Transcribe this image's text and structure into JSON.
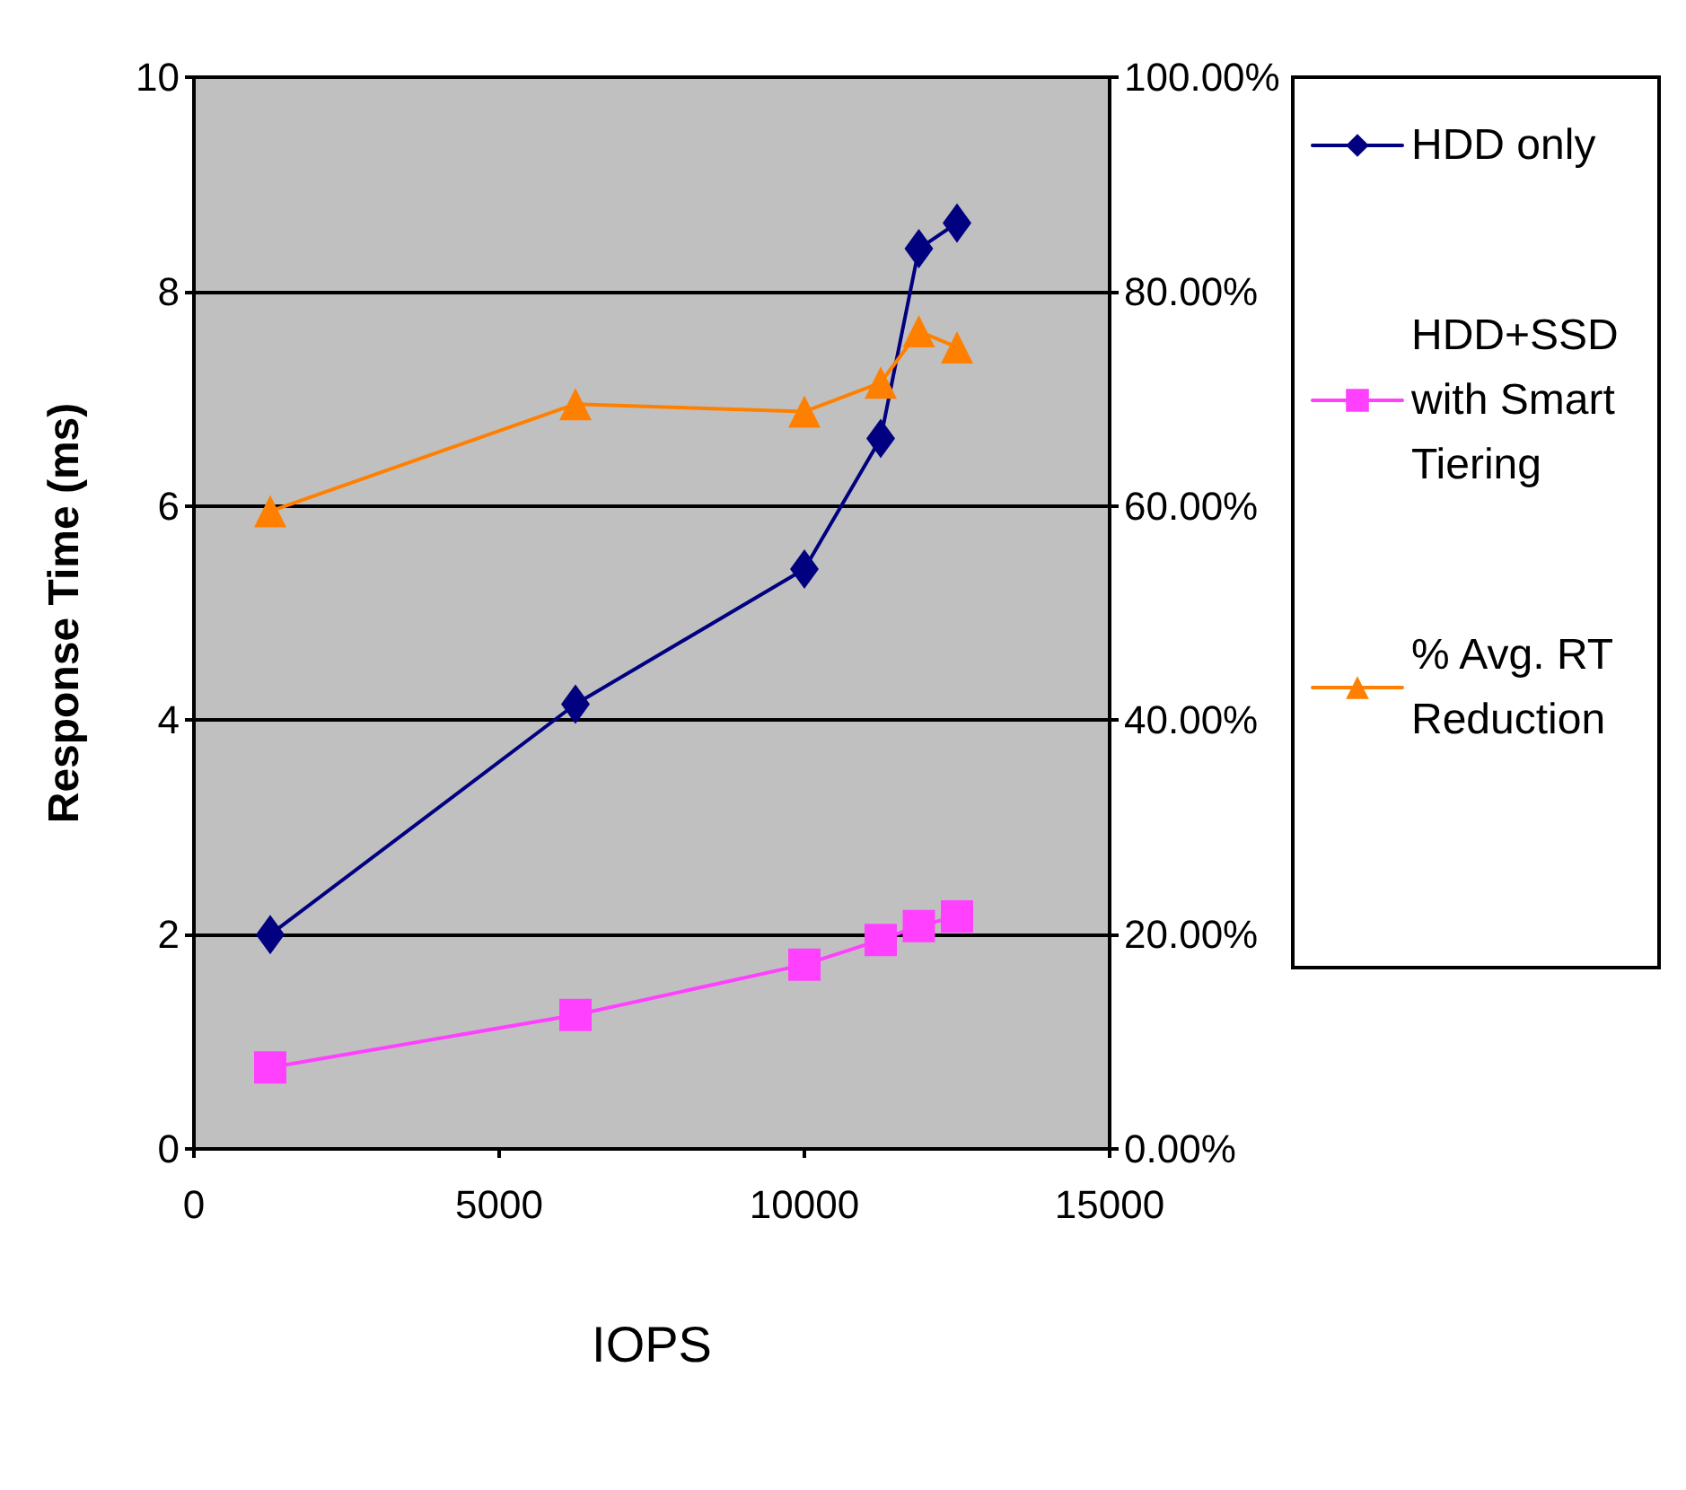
{
  "chart_data": {
    "type": "line",
    "xlabel": "IOPS",
    "ylabel": "Response Time (ms)",
    "xlim": [
      0,
      15000
    ],
    "xticks": [
      0,
      5000,
      10000,
      15000
    ],
    "ylim": [
      0,
      10
    ],
    "yticks": [
      0,
      2,
      4,
      6,
      8,
      10
    ],
    "y2lim": [
      0,
      100
    ],
    "y2ticks": [
      {
        "value": 0,
        "label": "0.00%"
      },
      {
        "value": 20,
        "label": "20.00%"
      },
      {
        "value": 40,
        "label": "40.00%"
      },
      {
        "value": 60,
        "label": "60.00%"
      },
      {
        "value": 80,
        "label": "80.00%"
      },
      {
        "value": 100,
        "label": "100.00%"
      }
    ],
    "grid": "y",
    "legend": "right",
    "series": [
      {
        "name": "HDD only",
        "color": "#000080",
        "marker": "diamond",
        "x": [
          1250,
          6250,
          10000,
          11250,
          11875,
          12500
        ],
        "values": [
          2.0,
          4.15,
          5.41,
          6.63,
          8.4,
          8.64
        ]
      },
      {
        "name": "HDD+SSD with Smart Tiering",
        "color": "#ff40ff",
        "marker": "square",
        "x": [
          1250,
          6250,
          10000,
          11250,
          11875,
          12500
        ],
        "values": [
          0.76,
          1.25,
          1.72,
          1.95,
          2.08,
          2.17
        ]
      },
      {
        "name": "% Avg. RT Reduction",
        "color": "#ff8000",
        "marker": "triangle",
        "axis": "y2",
        "x": [
          1250,
          6250,
          10000,
          11250,
          11875,
          12500
        ],
        "values": [
          59.5,
          69.5,
          68.8,
          71.5,
          76.3,
          74.8
        ]
      }
    ]
  }
}
